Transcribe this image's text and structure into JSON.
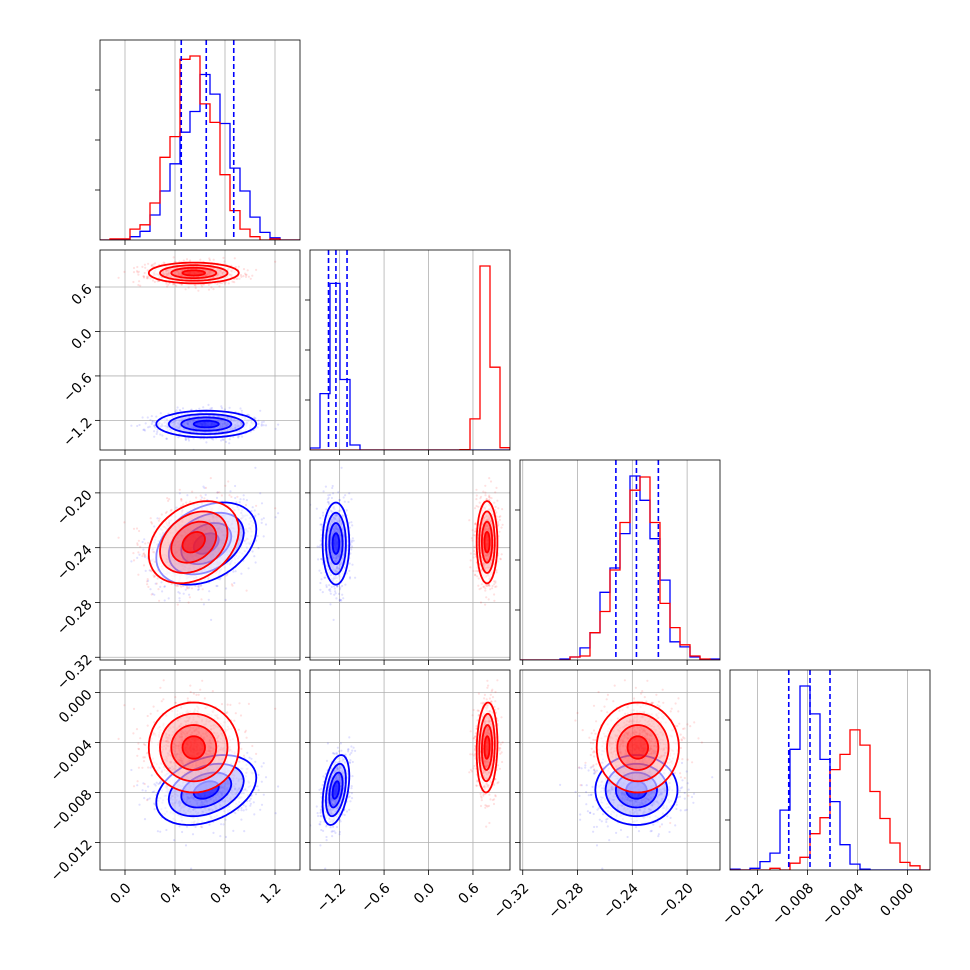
{
  "chart_data": {
    "type": "corner",
    "parameters": 4,
    "grid": true,
    "colors": {
      "series_a": "#0000ff",
      "series_b": "#ff0000",
      "quantile_line": "#0000ff"
    },
    "axes": [
      {
        "ticks": [
          0.0,
          0.4,
          0.8,
          1.2
        ],
        "tick_labels": [
          "0.0",
          "0.4",
          "0.8",
          "1.2"
        ],
        "range": [
          -0.2,
          1.4
        ]
      },
      {
        "ticks": [
          -1.2,
          -0.6,
          0.0,
          0.6
        ],
        "tick_labels": [
          "−1.2",
          "−0.6",
          "0.0",
          "0.6"
        ],
        "range": [
          -1.6,
          1.1
        ]
      },
      {
        "ticks": [
          -0.32,
          -0.28,
          -0.24,
          -0.2
        ],
        "tick_labels": [
          "−0.32",
          "−0.28",
          "−0.24",
          "−0.20"
        ],
        "range": [
          -0.322,
          -0.176
        ]
      },
      {
        "ticks": [
          -0.012,
          -0.008,
          -0.004,
          0.0
        ],
        "tick_labels": [
          "−0.012",
          "−0.008",
          "−0.004",
          "0.000"
        ],
        "range": [
          -0.0142,
          0.0018
        ]
      }
    ],
    "series": [
      {
        "color": "#0000ff",
        "mean": [
          0.65,
          -1.25,
          -0.237,
          -0.0078
        ],
        "sd": [
          0.2,
          0.09,
          0.015,
          0.0014
        ],
        "correlations": [
          [
            0,
            2,
            0.35
          ],
          [
            0,
            3,
            0.35
          ],
          [
            1,
            3,
            0.4
          ]
        ],
        "quantiles": [
          [
            0.45,
            0.65,
            0.87
          ],
          [
            -1.35,
            -1.25,
            -1.1
          ],
          [
            -0.252,
            -0.237,
            -0.221
          ],
          [
            -0.0095,
            -0.0078,
            -0.0062
          ]
        ]
      },
      {
        "color": "#ff0000",
        "mean": [
          0.55,
          0.79,
          -0.236,
          -0.0044
        ],
        "sd": [
          0.18,
          0.07,
          0.015,
          0.0018
        ],
        "correlations": [
          [
            0,
            2,
            0.3
          ],
          [
            1,
            3,
            0.1
          ]
        ]
      }
    ]
  }
}
